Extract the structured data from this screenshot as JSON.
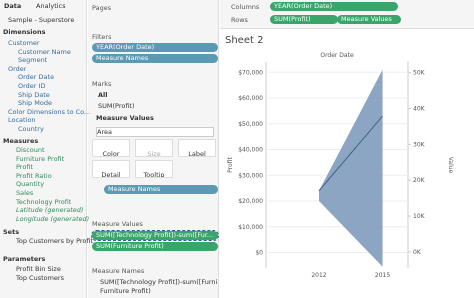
{
  "data_pane": {
    "tabs": [
      "Data",
      "Analytics"
    ],
    "source": "Sample - Superstore",
    "dimensions_title": "Dimensions",
    "dimensions": [
      "Customer",
      "Customer Name",
      "Segment",
      "Order",
      "Order Date",
      "Order ID",
      "Ship Date",
      "Ship Mode",
      "Color Dimensions to Co...",
      "Location",
      "Country"
    ],
    "measures_title": "Measures",
    "measures": [
      "Discount",
      "Furniture Profit",
      "Profit",
      "Profit Ratio",
      "Quantity",
      "Sales",
      "Technology Profit",
      "Latitude (generated)",
      "Longitude (generated)"
    ],
    "sets_title": "Sets",
    "sets": [
      "Top Customers by Profit"
    ],
    "parameters_title": "Parameters",
    "parameters": [
      "Profit Bin Size",
      "Top Customers"
    ]
  },
  "cards": {
    "pages": "Pages",
    "filters": "Filters",
    "filter_pills": [
      "YEAR(Order Date)",
      "Measure Names"
    ],
    "marks": "Marks",
    "marks_all": "All",
    "marks_sum": "SUM(Profit)",
    "marks_mv": "Measure Values",
    "mark_type": "Area",
    "mark_buttons": [
      "Color",
      "Size",
      "Label",
      "Detail",
      "Tooltip"
    ],
    "marks_pill": "Measure Names",
    "mv_title": "Measure Values",
    "mv_pills": [
      "SUM([Technology Profit])-sum([Fur...",
      "SUM(Furniture Profit)"
    ],
    "legend_title": "Measure Names",
    "legend_item": [
      "SUM([Technology Profit])-sum([Furniture Prof...",
      "Furniture Profit)"
    ]
  },
  "shelves": {
    "columns": "Columns",
    "columns_pill": "YEAR(Order Date)",
    "rows": "Rows",
    "rows_pills": [
      "SUM(Profit)",
      "Measure Values"
    ]
  },
  "view": {
    "title": "Sheet 2",
    "header": "Order Date",
    "y_label": "Profit",
    "y2_label": "Value",
    "x": [
      2012,
      2015
    ],
    "xlim": [
      2009.5,
      2016.2
    ],
    "xticks": [
      2012,
      2015
    ],
    "ylim": [
      -6000,
      74000
    ],
    "yticks": [
      {
        "value": 0,
        "label": "$0"
      },
      {
        "value": 10000,
        "label": "$10,000"
      },
      {
        "value": 20000,
        "label": "$20,000"
      },
      {
        "value": 30000,
        "label": "$30,000"
      },
      {
        "value": 40000,
        "label": "$40,000"
      },
      {
        "value": 50000,
        "label": "$50,000"
      },
      {
        "value": 60000,
        "label": "$60,000"
      },
      {
        "value": 70000,
        "label": "$70,000"
      }
    ],
    "y2lim": [
      -4500,
      53000
    ],
    "y2ticks": [
      {
        "value": 0,
        "label": "0K"
      },
      {
        "value": 10000,
        "label": "10K"
      },
      {
        "value": 20000,
        "label": "20K"
      },
      {
        "value": 30000,
        "label": "30K"
      },
      {
        "value": 40000,
        "label": "40K"
      },
      {
        "value": 50000,
        "label": "50K"
      }
    ],
    "area": {
      "color": "#7f9bbb",
      "upper": [
        24000,
        71000
      ],
      "lower": [
        20000,
        -5500
      ]
    },
    "line": {
      "color": "#44638c",
      "values": [
        24000,
        53000
      ]
    }
  }
}
